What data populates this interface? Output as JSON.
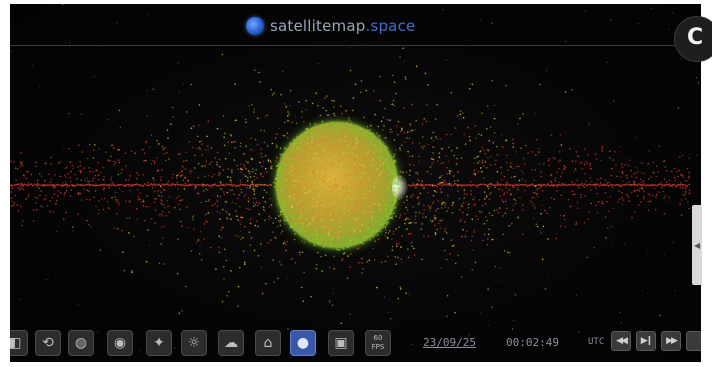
{
  "brand": {
    "name": "satellitemap",
    "tld": ".space",
    "logo_icon": "globe-icon"
  },
  "colors": {
    "space_background": "#060505",
    "brand_text": "#9aa3b8",
    "brand_tld": "#3e6fcf",
    "debris_red": "#d83a2a",
    "satellite_yellow": "#d8c23a",
    "satellite_green": "#7ed02a",
    "active_tool": "#3a57a8"
  },
  "corner_button": {
    "icon": "settings-icon",
    "glyph": "C"
  },
  "toolbar": {
    "tools": [
      {
        "name": "layers-tool",
        "icon": "layers-icon",
        "glyph": "◧"
      },
      {
        "name": "orbit-tool",
        "icon": "orbit-icon",
        "glyph": "⟲"
      },
      {
        "name": "globe-tool",
        "icon": "globe-icon",
        "glyph": "◍"
      },
      {
        "name": "target-tool",
        "icon": "target-icon",
        "glyph": "◉"
      },
      {
        "name": "constellation-tool",
        "icon": "sparkle-icon",
        "glyph": "✦"
      },
      {
        "name": "sun-tool",
        "icon": "sun-icon",
        "glyph": "☼"
      },
      {
        "name": "weather-tool",
        "icon": "cloud-icon",
        "glyph": "☁"
      },
      {
        "name": "signal-tool",
        "icon": "signal-icon",
        "glyph": "⌂"
      },
      {
        "name": "earth-view-tool",
        "icon": "earth-icon",
        "glyph": "●"
      },
      {
        "name": "camera-tool",
        "icon": "camera-icon",
        "glyph": "▣"
      }
    ],
    "fps_top": "60",
    "fps_bottom": "FPS",
    "date": "23/09/25",
    "time": "00:02:49",
    "timezone": "UTC",
    "controls": [
      {
        "name": "rewind-button",
        "icon": "rewind-icon",
        "glyph": "◀◀"
      },
      {
        "name": "play-pause-button",
        "icon": "play-pause-icon",
        "glyph": "▶❙"
      },
      {
        "name": "fast-forward-button",
        "icon": "fast-forward-icon",
        "glyph": "▶▶"
      }
    ]
  },
  "sidebar_handle": {
    "icon": "collapse-arrow-icon",
    "glyph": "◀"
  }
}
